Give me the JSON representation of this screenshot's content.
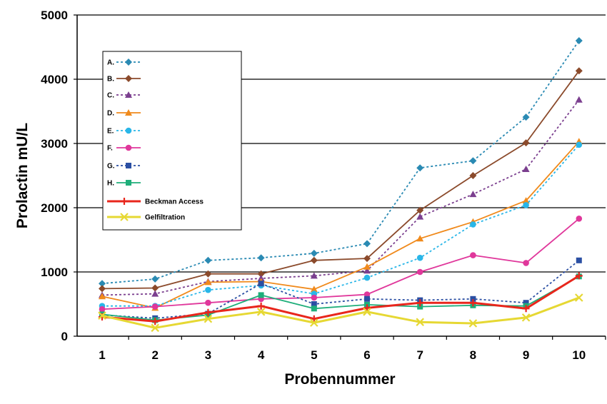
{
  "chart_data": {
    "type": "line",
    "xlabel": "Probennummer",
    "ylabel": "Prolactin mU/L",
    "categories": [
      "1",
      "2",
      "3",
      "4",
      "5",
      "6",
      "7",
      "8",
      "9",
      "10"
    ],
    "yticks": [
      "0",
      "1000",
      "2000",
      "3000",
      "4000",
      "5000"
    ],
    "ylim": [
      0,
      5000
    ],
    "grid": "horizontal",
    "legend_position": "top-left",
    "series": [
      {
        "name": "A.",
        "color": "#2a8ab3",
        "dash": "dotted",
        "marker": "diamond",
        "values": [
          820,
          890,
          1180,
          1220,
          1290,
          1440,
          2620,
          2730,
          3410,
          4600
        ]
      },
      {
        "name": "B.",
        "color": "#8b4a2b",
        "dash": "solid",
        "marker": "diamond",
        "values": [
          740,
          750,
          970,
          970,
          1180,
          1210,
          1960,
          2500,
          3010,
          4130
        ]
      },
      {
        "name": "C.",
        "color": "#7b3f8f",
        "dash": "dotted",
        "marker": "triangle",
        "values": [
          640,
          660,
          850,
          900,
          940,
          1020,
          1860,
          2210,
          2600,
          3680
        ]
      },
      {
        "name": "D.",
        "color": "#f08a1c",
        "dash": "solid",
        "marker": "triangle",
        "values": [
          620,
          440,
          840,
          850,
          730,
          1080,
          1520,
          1780,
          2110,
          3030
        ]
      },
      {
        "name": "E.",
        "color": "#29b6e8",
        "dash": "dotted",
        "marker": "circle",
        "values": [
          470,
          470,
          720,
          790,
          660,
          910,
          1220,
          1740,
          2040,
          2980
        ]
      },
      {
        "name": "F.",
        "color": "#e0379b",
        "dash": "solid",
        "marker": "circle",
        "values": [
          420,
          460,
          520,
          580,
          600,
          650,
          1000,
          1260,
          1140,
          1830
        ]
      },
      {
        "name": "G.",
        "color": "#2b4fa3",
        "dash": "dotted",
        "marker": "square",
        "values": [
          330,
          280,
          350,
          820,
          500,
          580,
          560,
          580,
          520,
          1180
        ]
      },
      {
        "name": "H.",
        "color": "#1fae7a",
        "dash": "solid",
        "marker": "square",
        "values": [
          340,
          250,
          330,
          640,
          430,
          490,
          460,
          480,
          470,
          930
        ]
      },
      {
        "name": "Beckman Access",
        "color": "#e8261c",
        "dash": "solid",
        "marker": "plus",
        "values": [
          300,
          230,
          370,
          470,
          270,
          440,
          520,
          520,
          430,
          940
        ]
      },
      {
        "name": "Gelfiltration",
        "color": "#e6d833",
        "dash": "solid",
        "marker": "x",
        "values": [
          320,
          130,
          270,
          380,
          210,
          380,
          220,
          200,
          290,
          600
        ]
      }
    ]
  }
}
